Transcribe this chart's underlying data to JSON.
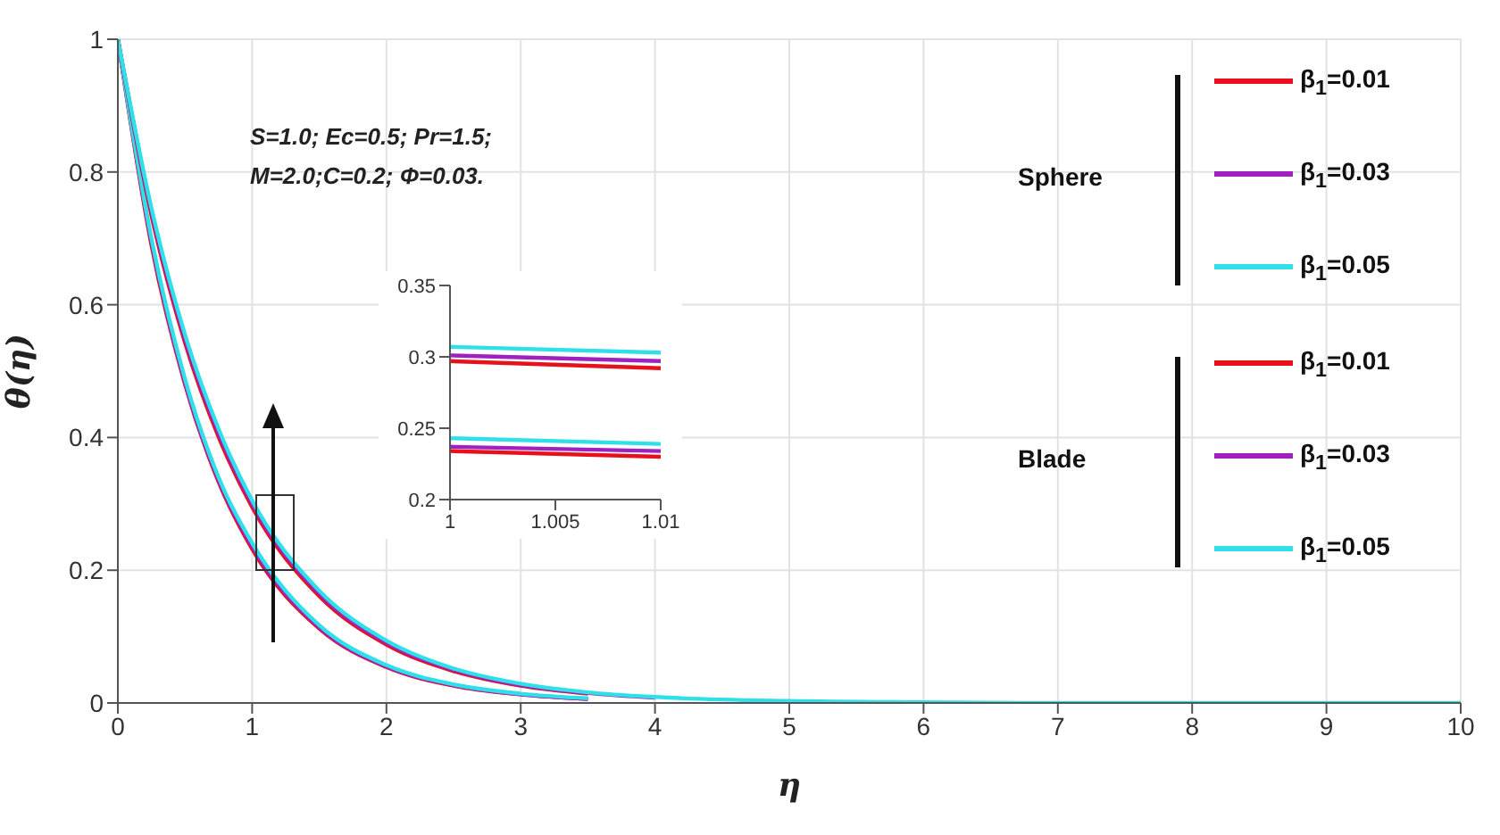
{
  "chart_data": [
    {
      "type": "line",
      "xlabel": "η",
      "ylabel": "θ(η)",
      "x": [
        0,
        0.25,
        0.5,
        0.75,
        1,
        1.5,
        2,
        2.5,
        3,
        3.5,
        4,
        5,
        6,
        7,
        8,
        10
      ],
      "xlim": [
        0,
        10
      ],
      "xticks": [
        0,
        1,
        2,
        3,
        4,
        5,
        6,
        7,
        8,
        9,
        10
      ],
      "ylim": [
        0,
        1
      ],
      "yticks": [
        0,
        0.2,
        0.4,
        0.6,
        0.8,
        1
      ],
      "grid": true,
      "legend": "right",
      "annotations": [
        "S=1.0; Ec=0.5; Pr=1.5;",
        "M=2.0;C=0.2; Φ=0.03.",
        "Sphere",
        "Blade"
      ],
      "series": [
        {
          "name": "β$_{1}$=0.01",
          "color": "#e8101a",
          "values": [
            1,
            0.69,
            0.48,
            0.333,
            0.232,
            0.112,
            0.054,
            0.026,
            0.013,
            0.006,
            null,
            null,
            null,
            null,
            null,
            null
          ]
        },
        {
          "name": "β$_{1}$=0.03",
          "color": "#a020c0",
          "values": [
            1,
            0.695,
            0.483,
            0.336,
            0.236,
            0.114,
            0.055,
            0.027,
            0.013,
            0.006,
            null,
            null,
            null,
            null,
            null,
            null
          ]
        },
        {
          "name": "β$_{1}$=0.05",
          "color": "#30e0e8",
          "values": [
            1,
            0.7,
            0.488,
            0.34,
            0.241,
            0.117,
            0.057,
            0.028,
            0.014,
            0.007,
            null,
            null,
            null,
            null,
            null,
            null
          ]
        },
        {
          "name": "β$_{1}$=0.01",
          "color": "#e8101a",
          "values": [
            1,
            0.735,
            0.543,
            0.401,
            0.295,
            0.161,
            0.088,
            0.048,
            0.026,
            0.014,
            null,
            null,
            null,
            null,
            null,
            null
          ]
        },
        {
          "name": "β$_{1}$=0.03",
          "color": "#a020c0",
          "values": [
            1,
            0.741,
            0.549,
            0.407,
            0.3,
            0.165,
            0.091,
            0.05,
            0.027,
            0.015,
            0.008,
            null,
            null,
            null,
            null,
            null
          ]
        },
        {
          "name": "β$_{1}$=0.05",
          "color": "#30e0e8",
          "values": [
            1,
            0.746,
            0.555,
            0.413,
            0.305,
            0.169,
            0.094,
            0.052,
            0.029,
            0.016,
            0.009,
            0.003,
            0.001,
            0,
            0,
            0
          ]
        }
      ]
    },
    {
      "type": "line",
      "x": [
        1,
        1.01
      ],
      "xlim": [
        1,
        1.01
      ],
      "xticks": [
        1,
        1.005,
        1.01
      ],
      "ylim": [
        0.2,
        0.35
      ],
      "yticks": [
        0.2,
        0.25,
        0.3,
        0.35
      ],
      "grid": false,
      "series": [
        {
          "color": "#e8101a",
          "values": [
            0.234,
            0.23
          ]
        },
        {
          "color": "#a020c0",
          "values": [
            0.237,
            0.234
          ]
        },
        {
          "color": "#30e0e8",
          "values": [
            0.243,
            0.239
          ]
        },
        {
          "color": "#e8101a",
          "values": [
            0.297,
            0.292
          ]
        },
        {
          "color": "#a020c0",
          "values": [
            0.301,
            0.297
          ]
        },
        {
          "color": "#30e0e8",
          "values": [
            0.307,
            0.303
          ]
        }
      ]
    }
  ]
}
